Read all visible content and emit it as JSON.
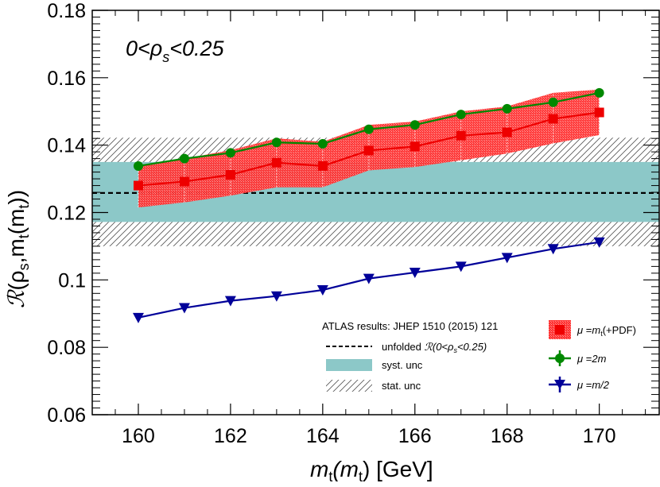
{
  "chart_data": {
    "type": "line",
    "title": "",
    "region_label": "0<ρs<0.25",
    "region_label_parts": {
      "lhs": "0<ρ",
      "sub": "s",
      "rhs": "<0.25"
    },
    "xlabel": "mt(mt) [GeV]",
    "xlabel_parts": {
      "m": "m",
      "sub1": "t",
      "paren_open": "(m",
      "sub2": "t",
      "paren_close": ")",
      "unit": " [GeV]"
    },
    "ylabel": "R(ρs,mt(mt))",
    "ylabel_parts": {
      "R": "ℛ",
      "open": "(ρ",
      "sub1": "s",
      "mid": ",m",
      "sub2": "t",
      "mid2": "(m",
      "sub3": "t",
      "close": "))"
    },
    "xlim": [
      159,
      171.3
    ],
    "ylim": [
      0.06,
      0.18
    ],
    "x_ticks": [
      160,
      162,
      164,
      166,
      168,
      170
    ],
    "x_tick_labels": [
      "160",
      "162",
      "164",
      "166",
      "168",
      "170"
    ],
    "y_ticks": [
      0.06,
      0.08,
      0.1,
      0.12,
      0.14,
      0.16,
      0.18
    ],
    "y_tick_labels": [
      "0.06",
      "0.08",
      "0.1",
      "0.12",
      "0.14",
      "0.16",
      "0.18"
    ],
    "reference": {
      "central": 0.1258,
      "syst_band": [
        0.1172,
        0.135
      ],
      "stat_band": [
        0.11,
        0.1422
      ],
      "source": "ATLAS results: JHEP 1510 (2015) 121"
    },
    "x": [
      160,
      161,
      162,
      163,
      164,
      165,
      166,
      167,
      168,
      169,
      170
    ],
    "series": [
      {
        "name": "μ=mt(+PDF)",
        "color": "#ee0000",
        "marker": "square",
        "values": [
          0.128,
          0.1292,
          0.1312,
          0.1348,
          0.1338,
          0.1384,
          0.1396,
          0.1428,
          0.1438,
          0.1478,
          0.1497
        ],
        "band_low": [
          0.1215,
          0.123,
          0.125,
          0.1275,
          0.1275,
          0.1325,
          0.1335,
          0.1355,
          0.1375,
          0.1405,
          0.143
        ],
        "band_high": [
          0.134,
          0.136,
          0.1385,
          0.142,
          0.141,
          0.146,
          0.147,
          0.15,
          0.1515,
          0.1555,
          0.1565
        ]
      },
      {
        "name": "μ=2m",
        "color": "#008800",
        "marker": "circle",
        "values": [
          0.1338,
          0.136,
          0.1377,
          0.1408,
          0.1404,
          0.1447,
          0.146,
          0.1491,
          0.1508,
          0.1527,
          0.1555
        ]
      },
      {
        "name": "μ=m/2",
        "color": "#000099",
        "marker": "triangle-down",
        "values": [
          0.0888,
          0.0917,
          0.0938,
          0.0952,
          0.097,
          0.1004,
          0.1022,
          0.104,
          0.1066,
          0.1092,
          0.1112
        ]
      }
    ],
    "legend_left": {
      "header": "ATLAS results: JHEP 1510 (2015) 121",
      "entries": [
        {
          "label_prefix": "unfolded ",
          "label_italic": "ℛ(0<ρ",
          "label_sub": "s",
          "label_suffix": "<0.25)"
        },
        {
          "label": "syst. unc"
        },
        {
          "label": "stat. unc"
        }
      ]
    },
    "legend_right": [
      {
        "mu": "μ",
        "eq": " =",
        "var": "m",
        "sub": "t",
        "extra": "(+PDF)"
      },
      {
        "mu": "μ",
        "eq": " =",
        "var": "2m",
        "sub": "",
        "extra": ""
      },
      {
        "mu": "μ",
        "eq": " =",
        "var": "m/2",
        "sub": "",
        "extra": ""
      }
    ],
    "colors": {
      "syst_fill": "#8cc8c8",
      "central_line": "#000000",
      "hatch": "#555555"
    }
  }
}
